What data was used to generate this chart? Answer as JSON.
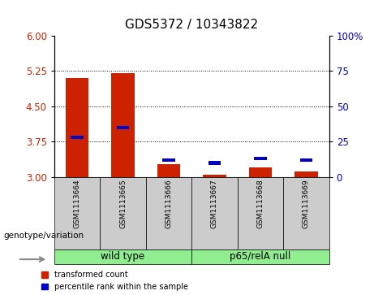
{
  "title": "GDS5372 / 10343822",
  "samples": [
    "GSM1113664",
    "GSM1113665",
    "GSM1113666",
    "GSM1113667",
    "GSM1113668",
    "GSM1113669"
  ],
  "red_values": [
    5.1,
    5.2,
    3.27,
    3.05,
    3.2,
    3.12
  ],
  "blue_values_pct": [
    28,
    35,
    12,
    10,
    13,
    12
  ],
  "ylim_left": [
    3.0,
    6.0
  ],
  "ylim_right": [
    0,
    100
  ],
  "yticks_left": [
    3,
    3.75,
    4.5,
    5.25,
    6
  ],
  "yticks_right": [
    0,
    25,
    50,
    75,
    100
  ],
  "hlines": [
    3.75,
    4.5,
    5.25
  ],
  "bar_color": "#cc2200",
  "blue_color": "#0000cc",
  "bar_width": 0.5,
  "sample_bg_color": "#cccccc",
  "group_bg_color": "#90EE90",
  "groups_info": [
    [
      "wild type",
      0,
      2
    ],
    [
      "p65/relA null",
      3,
      5
    ]
  ],
  "legend_red_label": "transformed count",
  "legend_blue_label": "percentile rank within the sample",
  "genotype_label": "genotype/variation",
  "title_fontsize": 11,
  "tick_fontsize": 8.5,
  "label_fontsize": 7.5,
  "group_fontsize": 8.5
}
